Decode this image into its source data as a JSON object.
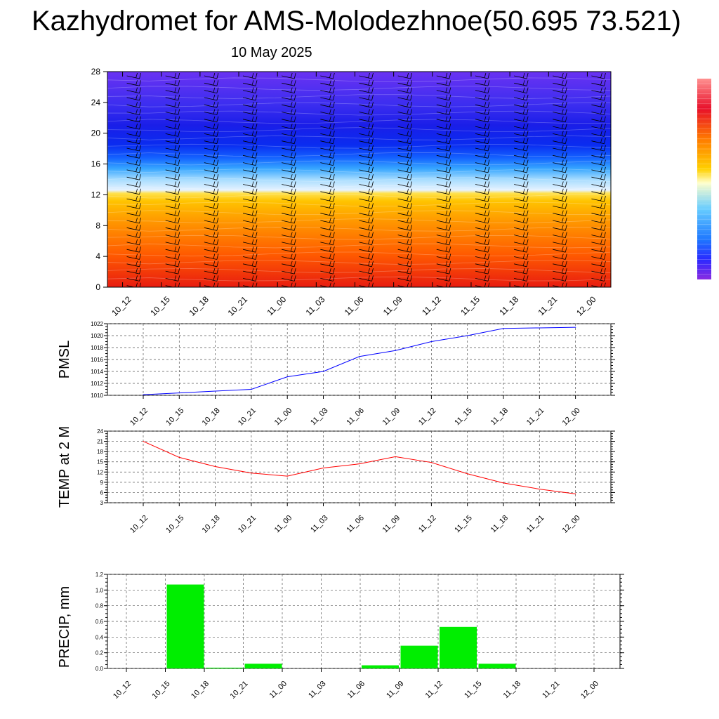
{
  "title": "Kazhydromet for AMS-Molodezhnoe(50.695 73.521)",
  "date": "10 May 2025",
  "time_labels": [
    "10_12",
    "10_15",
    "10_18",
    "10_21",
    "11_00",
    "11_03",
    "11_06",
    "11_09",
    "11_12",
    "11_15",
    "11_18",
    "11_21",
    "12_00"
  ],
  "colors": {
    "pmsl_line": "#0000ff",
    "temp_line": "#ff0000",
    "precip_bar": "#00ee00"
  },
  "chart_data": [
    {
      "type": "heatmap",
      "title": "Kazhydromet for AMS-Molodezhnoe(50.695 73.521)",
      "subtitle": "10 May 2025",
      "x": [
        "10_12",
        "10_15",
        "10_18",
        "10_21",
        "11_00",
        "11_03",
        "11_06",
        "11_09",
        "11_12",
        "11_15",
        "11_18",
        "11_21",
        "12_00"
      ],
      "yticks": [
        0,
        4,
        8,
        12,
        16,
        20,
        24,
        28
      ],
      "ylim": [
        0,
        28
      ],
      "colorbar": "rainbow, no labels",
      "overlay": "wind barbs"
    },
    {
      "type": "line",
      "ylabel": "PMSL",
      "x": [
        "10_12",
        "10_15",
        "10_18",
        "10_21",
        "11_00",
        "11_03",
        "11_06",
        "11_09",
        "11_12",
        "11_15",
        "11_18",
        "11_21",
        "12_00"
      ],
      "values": [
        1010.1,
        1010.4,
        1010.7,
        1011.0,
        1013.1,
        1014.0,
        1016.5,
        1017.5,
        1019.0,
        1020.0,
        1021.2,
        1021.3,
        1021.4
      ],
      "ylim": [
        1010,
        1022
      ],
      "yticks": [
        1010,
        1012,
        1014,
        1016,
        1018,
        1020,
        1022
      ],
      "grid": true,
      "color": "#0000ff"
    },
    {
      "type": "line",
      "ylabel": "TEMP at 2 M",
      "x": [
        "10_12",
        "10_15",
        "10_18",
        "10_21",
        "11_00",
        "11_03",
        "11_06",
        "11_09",
        "11_12",
        "11_15",
        "11_18",
        "11_21",
        "12_00"
      ],
      "values": [
        21.0,
        16.3,
        13.6,
        11.7,
        10.8,
        13.2,
        14.4,
        16.5,
        14.8,
        11.5,
        8.8,
        7.0,
        5.6
      ],
      "ylim": [
        3,
        24
      ],
      "yticks": [
        3,
        6,
        9,
        12,
        15,
        18,
        21,
        24
      ],
      "grid": true,
      "color": "#ff0000"
    },
    {
      "type": "bar",
      "ylabel": "PRECIP, mm",
      "categories": [
        "10_12",
        "10_15",
        "10_18",
        "10_21",
        "11_00",
        "11_03",
        "11_06",
        "11_09",
        "11_12",
        "11_15",
        "11_18",
        "11_21",
        "12_00"
      ],
      "values": [
        0,
        1.07,
        0.01,
        0.06,
        0,
        0,
        0.04,
        0.29,
        0.53,
        0.06,
        0,
        0,
        0
      ],
      "ylim": [
        0,
        1.2
      ],
      "yticks": [
        "0.0",
        "0.2",
        "0.4",
        "0.6",
        "0.8",
        "1.0",
        "1.2"
      ],
      "grid": true,
      "color": "#00ee00"
    }
  ]
}
